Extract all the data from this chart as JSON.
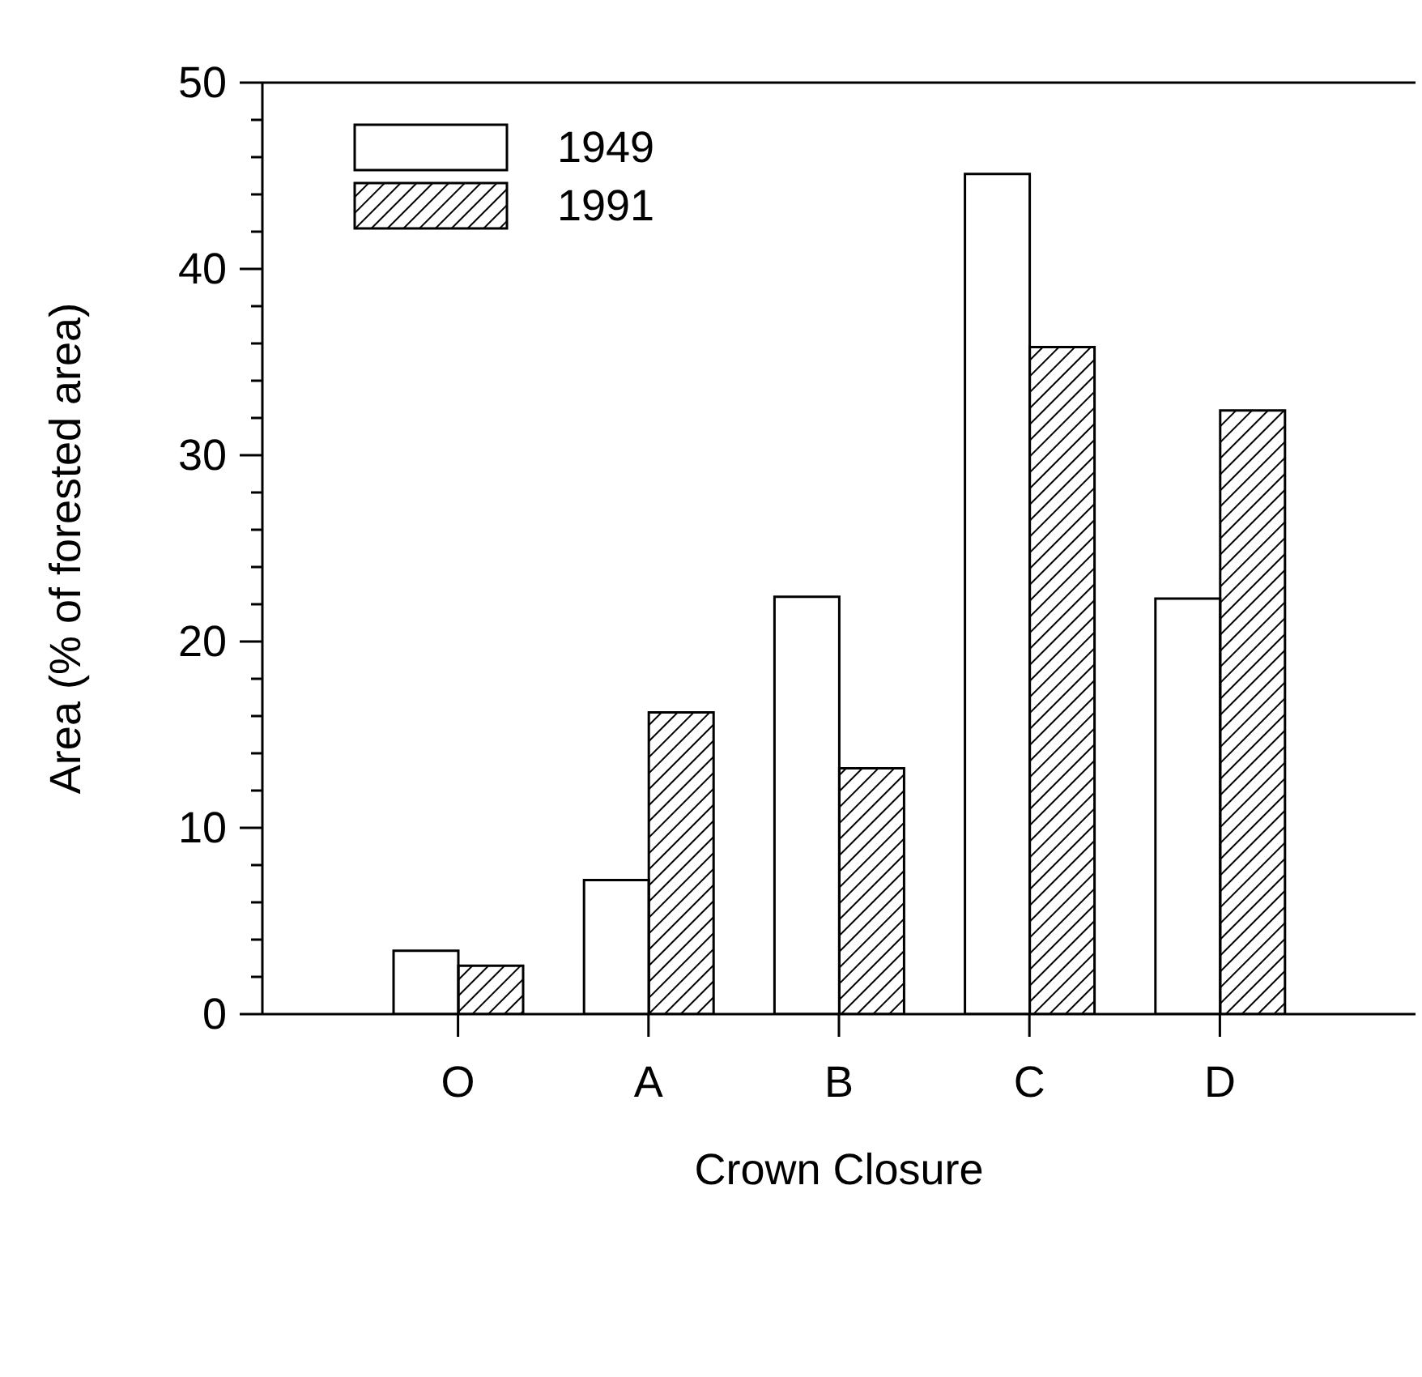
{
  "chart_data": {
    "type": "bar",
    "xlabel": "Crown Closure",
    "ylabel": "Area (% of forested area)",
    "categories": [
      "O",
      "A",
      "B",
      "C",
      "D"
    ],
    "series": [
      {
        "name": "1949",
        "color": "#ffffff",
        "values": [
          3.4,
          7.2,
          22.4,
          45.1,
          22.3
        ]
      },
      {
        "name": "1991",
        "color": "#000000",
        "values": [
          2.6,
          16.2,
          13.2,
          35.8,
          32.4
        ]
      }
    ],
    "ylim": [
      0,
      50
    ],
    "yticks": [
      0,
      {
        "value": 2,
        "label": null
      },
      {
        "value": 4,
        "label": null
      },
      {
        "value": 6,
        "label": null
      },
      {
        "value": 8,
        "label": null
      },
      10,
      {
        "value": 12,
        "label": null
      },
      {
        "value": 14,
        "label": null
      },
      {
        "value": 16,
        "label": null
      },
      {
        "value": 18,
        "label": null
      },
      20,
      {
        "value": 22,
        "label": null
      },
      {
        "value": 24,
        "label": null
      },
      {
        "value": 26,
        "label": null
      },
      {
        "value": 28,
        "label": null
      },
      30,
      {
        "value": 32,
        "label": null
      },
      {
        "value": 34,
        "label": null
      },
      {
        "value": 36,
        "label": null
      },
      {
        "value": 38,
        "label": null
      },
      40,
      {
        "value": 42,
        "label": null
      },
      {
        "value": 44,
        "label": null
      },
      {
        "value": 46,
        "label": null
      },
      {
        "value": 48,
        "label": null
      },
      50
    ],
    "grid": false,
    "legend": "top left"
  }
}
